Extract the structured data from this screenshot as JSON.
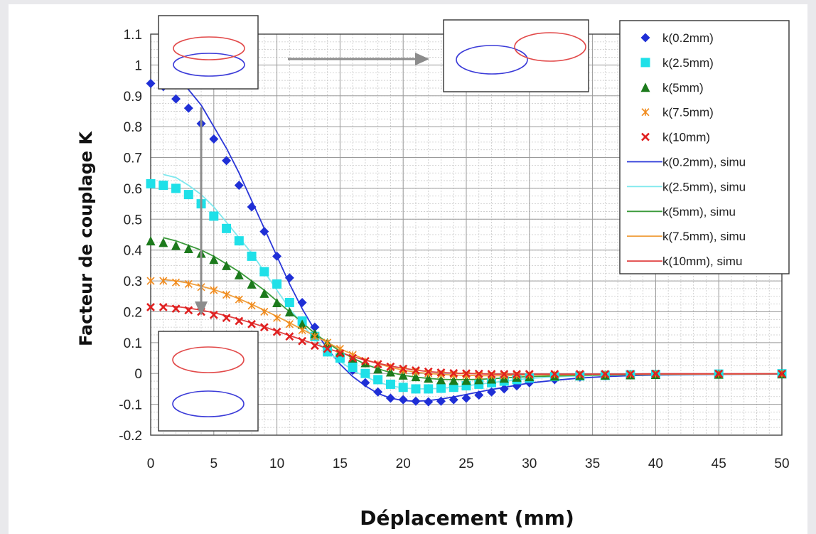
{
  "chart_data": {
    "type": "scatter",
    "title": "",
    "xlabel": "Déplacement (mm)",
    "ylabel": "Facteur de couplage K",
    "xlim": [
      0,
      50
    ],
    "ylim": [
      -0.2,
      1.1
    ],
    "x_ticks": [
      "0",
      "5",
      "10",
      "15",
      "20",
      "25",
      "30",
      "35",
      "40",
      "45",
      "50"
    ],
    "y_ticks": [
      "1.1",
      "1",
      "0.9",
      "0.8",
      "0.7",
      "0.6",
      "0.5",
      "0.4",
      "0.3",
      "0.2",
      "0.1",
      "0",
      "-0.1",
      "-0.2"
    ],
    "grid": true,
    "legend_position": "top-right",
    "x_points": [
      0,
      1,
      2,
      3,
      4,
      5,
      6,
      7,
      8,
      9,
      10,
      11,
      12,
      13,
      14,
      15,
      16,
      17,
      18,
      19,
      20,
      21,
      22,
      23,
      24,
      25,
      26,
      27,
      28,
      29,
      30,
      32,
      34,
      36,
      38,
      40,
      45,
      50
    ],
    "series": [
      {
        "name": "k(0.2mm)",
        "kind": "markers",
        "marker": "diamond",
        "color": "#1f2fd6",
        "values": [
          0.94,
          0.93,
          0.89,
          0.86,
          0.81,
          0.76,
          0.69,
          0.61,
          0.54,
          0.46,
          0.38,
          0.31,
          0.23,
          0.15,
          0.08,
          0.05,
          0.01,
          -0.03,
          -0.06,
          -0.08,
          -0.085,
          -0.09,
          -0.092,
          -0.09,
          -0.085,
          -0.08,
          -0.07,
          -0.06,
          -0.05,
          -0.04,
          -0.03,
          -0.02,
          -0.012,
          -0.008,
          -0.005,
          -0.003,
          -0.002,
          -0.001
        ]
      },
      {
        "name": "k(2.5mm)",
        "kind": "markers",
        "marker": "square",
        "color": "#1fe0e8",
        "values": [
          0.615,
          0.61,
          0.6,
          0.58,
          0.55,
          0.51,
          0.47,
          0.43,
          0.38,
          0.33,
          0.29,
          0.23,
          0.17,
          0.12,
          0.07,
          0.05,
          0.02,
          0.0,
          -0.02,
          -0.035,
          -0.045,
          -0.05,
          -0.05,
          -0.048,
          -0.045,
          -0.04,
          -0.035,
          -0.03,
          -0.025,
          -0.02,
          -0.015,
          -0.01,
          -0.008,
          -0.006,
          -0.004,
          -0.003,
          -0.002,
          -0.001
        ]
      },
      {
        "name": "k(5mm)",
        "kind": "markers",
        "marker": "triangle",
        "color": "#1c7a1c",
        "values": [
          0.43,
          0.425,
          0.415,
          0.405,
          0.39,
          0.37,
          0.35,
          0.32,
          0.29,
          0.26,
          0.23,
          0.2,
          0.16,
          0.13,
          0.1,
          0.07,
          0.05,
          0.035,
          0.015,
          0.005,
          -0.005,
          -0.01,
          -0.015,
          -0.02,
          -0.022,
          -0.022,
          -0.02,
          -0.018,
          -0.015,
          -0.012,
          -0.01,
          -0.008,
          -0.006,
          -0.005,
          -0.004,
          -0.003,
          -0.002,
          -0.001
        ]
      },
      {
        "name": "k(7.5mm)",
        "kind": "markers",
        "marker": "star",
        "color": "#f08a1c",
        "values": [
          0.3,
          0.3,
          0.295,
          0.29,
          0.28,
          0.27,
          0.255,
          0.24,
          0.22,
          0.2,
          0.18,
          0.16,
          0.14,
          0.12,
          0.1,
          0.08,
          0.06,
          0.04,
          0.03,
          0.02,
          0.01,
          0.005,
          0.0,
          -0.003,
          -0.005,
          -0.006,
          -0.007,
          -0.007,
          -0.007,
          -0.006,
          -0.005,
          -0.004,
          -0.004,
          -0.003,
          -0.003,
          -0.002,
          -0.002,
          -0.001
        ]
      },
      {
        "name": "k(10mm)",
        "kind": "markers",
        "marker": "cross",
        "color": "#e02020",
        "values": [
          0.215,
          0.215,
          0.21,
          0.205,
          0.2,
          0.19,
          0.18,
          0.17,
          0.16,
          0.15,
          0.135,
          0.12,
          0.105,
          0.09,
          0.08,
          0.065,
          0.05,
          0.04,
          0.03,
          0.022,
          0.015,
          0.01,
          0.006,
          0.003,
          0.001,
          0.0,
          -0.001,
          -0.002,
          -0.002,
          -0.002,
          -0.002,
          -0.002,
          -0.002,
          -0.002,
          -0.002,
          -0.001,
          -0.001,
          -0.001
        ]
      },
      {
        "name": "k(0.2mm), simu",
        "kind": "line",
        "color": "#2a36d8",
        "values": [
          null,
          0.985,
          0.96,
          0.92,
          0.87,
          0.8,
          0.73,
          0.65,
          0.56,
          0.47,
          0.38,
          0.29,
          0.21,
          0.14,
          0.08,
          0.03,
          -0.01,
          -0.04,
          -0.065,
          -0.08,
          -0.088,
          -0.09,
          -0.088,
          -0.083,
          -0.076,
          -0.068,
          -0.06,
          -0.052,
          -0.045,
          -0.038,
          -0.031,
          -0.022,
          -0.015,
          -0.01,
          -0.007,
          -0.005,
          -0.003,
          -0.002
        ]
      },
      {
        "name": "k(2.5mm), simu",
        "kind": "line",
        "color": "#7ee8ee",
        "values": [
          null,
          0.645,
          0.635,
          0.61,
          0.58,
          0.54,
          0.49,
          0.44,
          0.39,
          0.33,
          0.27,
          0.21,
          0.16,
          0.11,
          0.07,
          0.04,
          0.01,
          -0.01,
          -0.028,
          -0.04,
          -0.047,
          -0.05,
          -0.05,
          -0.048,
          -0.044,
          -0.04,
          -0.035,
          -0.03,
          -0.025,
          -0.02,
          -0.016,
          -0.011,
          -0.008,
          -0.006,
          -0.004,
          -0.003,
          -0.002,
          -0.001
        ]
      },
      {
        "name": "k(5mm), simu",
        "kind": "line",
        "color": "#3a9a3a",
        "values": [
          null,
          0.44,
          0.43,
          0.415,
          0.4,
          0.38,
          0.355,
          0.33,
          0.3,
          0.27,
          0.235,
          0.2,
          0.165,
          0.13,
          0.1,
          0.072,
          0.05,
          0.03,
          0.015,
          0.003,
          -0.006,
          -0.012,
          -0.016,
          -0.019,
          -0.02,
          -0.02,
          -0.019,
          -0.017,
          -0.015,
          -0.012,
          -0.01,
          -0.008,
          -0.006,
          -0.005,
          -0.004,
          -0.003,
          -0.002,
          -0.001
        ]
      },
      {
        "name": "k(7.5mm), simu",
        "kind": "line",
        "color": "#f0a040",
        "values": [
          null,
          0.305,
          0.3,
          0.293,
          0.283,
          0.272,
          0.258,
          0.242,
          0.224,
          0.205,
          0.185,
          0.164,
          0.143,
          0.122,
          0.1,
          0.08,
          0.062,
          0.045,
          0.032,
          0.02,
          0.011,
          0.004,
          0.0,
          -0.003,
          -0.005,
          -0.006,
          -0.007,
          -0.007,
          -0.007,
          -0.006,
          -0.005,
          -0.004,
          -0.004,
          -0.003,
          -0.003,
          -0.002,
          -0.002,
          -0.001
        ]
      },
      {
        "name": "k(10mm), simu",
        "kind": "line",
        "color": "#e04040",
        "values": [
          null,
          0.22,
          0.217,
          0.212,
          0.205,
          0.197,
          0.187,
          0.176,
          0.164,
          0.151,
          0.137,
          0.123,
          0.109,
          0.095,
          0.081,
          0.068,
          0.055,
          0.043,
          0.033,
          0.024,
          0.017,
          0.011,
          0.006,
          0.003,
          0.001,
          0.0,
          -0.001,
          -0.002,
          -0.002,
          -0.002,
          -0.002,
          -0.002,
          -0.002,
          -0.002,
          -0.002,
          -0.001,
          -0.001,
          -0.001
        ]
      }
    ],
    "insets": [
      {
        "name": "overlapped-coils",
        "position": "top-left"
      },
      {
        "name": "shifted-coils",
        "position": "top-center"
      },
      {
        "name": "separated-coils",
        "position": "bottom-left"
      }
    ],
    "arrows": [
      {
        "name": "lateral-shift-arrow",
        "direction": "right"
      },
      {
        "name": "vertical-gap-arrow",
        "direction": "down"
      }
    ],
    "coil_colors": {
      "red": "#e24a4a",
      "blue": "#3b3bd8"
    }
  }
}
